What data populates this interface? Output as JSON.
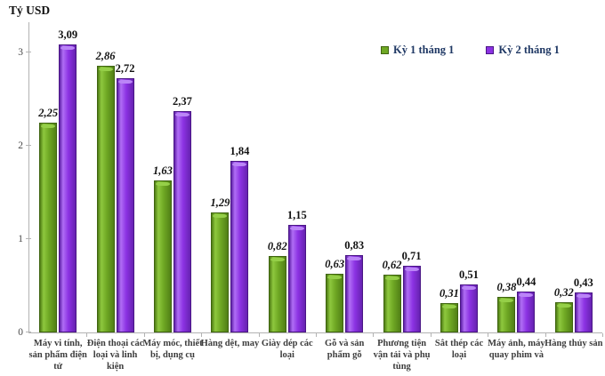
{
  "axis_title": "Tỷ USD",
  "chart_data": {
    "type": "bar",
    "title": "",
    "xlabel": "",
    "ylabel": "Tỷ USD",
    "ylim": [
      0,
      3.3
    ],
    "yticks": [
      0,
      1,
      2,
      3
    ],
    "grid": false,
    "legend_position": "top-right",
    "value_decimal_separator": ",",
    "categories": [
      "Máy vi tính, sản phẩm điện tử",
      "Điện thoại các loại và linh kiện",
      "Máy móc, thiết bị, dụng cụ",
      "Hàng dệt, may",
      "Giày dép các loại",
      "Gỗ và sản phẩm gỗ",
      "Phương tiện vận tải và phụ tùng",
      "Sắt thép các loại",
      "Máy ảnh, máy quay phim và",
      "Hàng thủy sản"
    ],
    "series": [
      {
        "name": "Kỳ 1 tháng 1",
        "color": "#6fa824",
        "values": [
          2.25,
          2.86,
          1.63,
          1.29,
          0.82,
          0.63,
          0.62,
          0.31,
          0.38,
          0.32
        ],
        "labels": [
          "2,25",
          "2,86",
          "1,63",
          "1,29",
          "0,82",
          "0,63",
          "0,62",
          "0,31",
          "0,38",
          "0,32"
        ]
      },
      {
        "name": "Kỳ 2 tháng 1",
        "color": "#8c32e3",
        "values": [
          3.09,
          2.72,
          2.37,
          1.84,
          1.15,
          0.83,
          0.71,
          0.51,
          0.44,
          0.43
        ],
        "labels": [
          "3,09",
          "2,72",
          "2,37",
          "1,84",
          "1,15",
          "0,83",
          "0,71",
          "0,51",
          "0,44",
          "0,43"
        ]
      }
    ]
  }
}
